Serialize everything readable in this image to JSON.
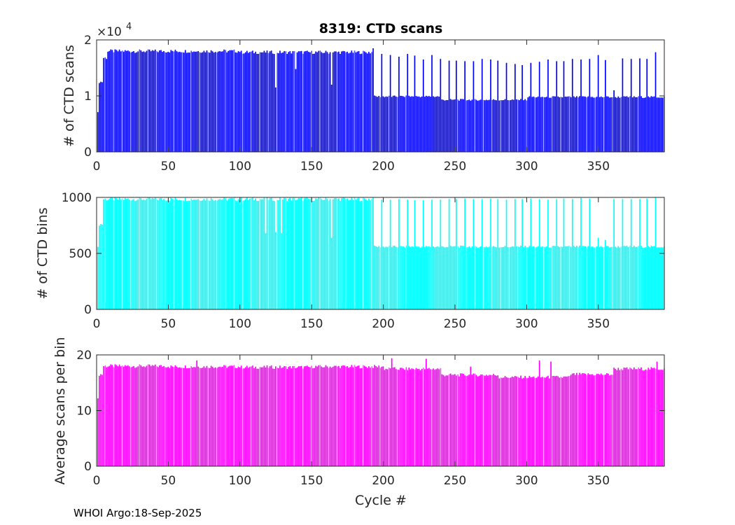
{
  "footer": "WHOI Argo:18-Sep-2025",
  "colors": {
    "scans": "#0000ff",
    "bins": "#00ffff",
    "avg": "#ff00ff",
    "axis": "#262626"
  },
  "chart_data": [
    {
      "type": "bar",
      "title": "8319: CTD scans",
      "xlabel": "",
      "ylabel": "# of CTD scans",
      "xlim": [
        0,
        396
      ],
      "ylim": [
        0,
        20000
      ],
      "xticks": [
        0,
        50,
        100,
        150,
        200,
        250,
        300,
        350
      ],
      "yticks": [
        0,
        10000,
        20000
      ],
      "ytick_labels": [
        "0",
        "1",
        "2"
      ],
      "exponent_label": "×10",
      "exponent_power": "4",
      "color_key": "scans",
      "segments": [
        {
          "x_from": 1,
          "x_to": 1,
          "value": 7000
        },
        {
          "x_from": 2,
          "x_to": 4,
          "value": 12500
        },
        {
          "x_from": 5,
          "x_to": 7,
          "value": 16800
        },
        {
          "x_from": 8,
          "x_to": 100,
          "value": 18000
        },
        {
          "x_from": 101,
          "x_to": 192,
          "value": 17800
        },
        {
          "x_from": 193,
          "x_to": 240,
          "value": 9900
        },
        {
          "x_from": 241,
          "x_to": 300,
          "value": 9300
        },
        {
          "x_from": 301,
          "x_to": 396,
          "value": 9800
        }
      ],
      "spikes": [
        {
          "x": 125,
          "value": 11500
        },
        {
          "x": 139,
          "value": 14800
        },
        {
          "x": 164,
          "value": 12000
        },
        {
          "x": 193,
          "value": 18500
        },
        {
          "x": 199,
          "value": 17500
        },
        {
          "x": 205,
          "value": 17300
        },
        {
          "x": 211,
          "value": 17000
        },
        {
          "x": 217,
          "value": 17500
        },
        {
          "x": 222,
          "value": 17200
        },
        {
          "x": 228,
          "value": 16500
        },
        {
          "x": 234,
          "value": 17300
        },
        {
          "x": 240,
          "value": 16600
        },
        {
          "x": 246,
          "value": 16300
        },
        {
          "x": 251,
          "value": 16300
        },
        {
          "x": 257,
          "value": 16200
        },
        {
          "x": 263,
          "value": 16200
        },
        {
          "x": 269,
          "value": 16600
        },
        {
          "x": 275,
          "value": 16500
        },
        {
          "x": 280,
          "value": 16300
        },
        {
          "x": 286,
          "value": 15900
        },
        {
          "x": 292,
          "value": 15700
        },
        {
          "x": 297,
          "value": 15500
        },
        {
          "x": 303,
          "value": 15900
        },
        {
          "x": 309,
          "value": 16100
        },
        {
          "x": 315,
          "value": 16500
        },
        {
          "x": 321,
          "value": 16200
        },
        {
          "x": 326,
          "value": 16200
        },
        {
          "x": 332,
          "value": 16600
        },
        {
          "x": 338,
          "value": 16500
        },
        {
          "x": 344,
          "value": 16600
        },
        {
          "x": 350,
          "value": 17300
        },
        {
          "x": 355,
          "value": 16400
        },
        {
          "x": 361,
          "value": 11000
        },
        {
          "x": 367,
          "value": 16700
        },
        {
          "x": 373,
          "value": 16600
        },
        {
          "x": 379,
          "value": 16700
        },
        {
          "x": 384,
          "value": 16600
        },
        {
          "x": 390,
          "value": 17800
        }
      ]
    },
    {
      "type": "bar",
      "title": "",
      "xlabel": "",
      "ylabel": "# of CTD bins",
      "xlim": [
        0,
        396
      ],
      "ylim": [
        0,
        1000
      ],
      "xticks": [
        0,
        50,
        100,
        150,
        200,
        250,
        300,
        350
      ],
      "yticks": [
        0,
        500,
        1000
      ],
      "ytick_labels": [
        "0",
        "500",
        "1000"
      ],
      "color_key": "bins",
      "segments": [
        {
          "x_from": 1,
          "x_to": 1,
          "value": 550
        },
        {
          "x_from": 2,
          "x_to": 4,
          "value": 760
        },
        {
          "x_from": 5,
          "x_to": 192,
          "value": 985
        },
        {
          "x_from": 193,
          "x_to": 396,
          "value": 560
        }
      ],
      "spikes": [
        {
          "x": 118,
          "value": 680
        },
        {
          "x": 125,
          "value": 690
        },
        {
          "x": 129,
          "value": 680
        },
        {
          "x": 164,
          "value": 640
        },
        {
          "x": 193,
          "value": 1000
        },
        {
          "x": 199,
          "value": 980
        },
        {
          "x": 205,
          "value": 980
        },
        {
          "x": 211,
          "value": 985
        },
        {
          "x": 217,
          "value": 980
        },
        {
          "x": 222,
          "value": 975
        },
        {
          "x": 228,
          "value": 975
        },
        {
          "x": 234,
          "value": 980
        },
        {
          "x": 240,
          "value": 980
        },
        {
          "x": 246,
          "value": 985
        },
        {
          "x": 251,
          "value": 985
        },
        {
          "x": 257,
          "value": 990
        },
        {
          "x": 263,
          "value": 985
        },
        {
          "x": 269,
          "value": 985
        },
        {
          "x": 275,
          "value": 990
        },
        {
          "x": 280,
          "value": 985
        },
        {
          "x": 286,
          "value": 980
        },
        {
          "x": 292,
          "value": 985
        },
        {
          "x": 297,
          "value": 985
        },
        {
          "x": 303,
          "value": 990
        },
        {
          "x": 309,
          "value": 985
        },
        {
          "x": 315,
          "value": 980
        },
        {
          "x": 321,
          "value": 985
        },
        {
          "x": 326,
          "value": 990
        },
        {
          "x": 332,
          "value": 985
        },
        {
          "x": 338,
          "value": 995
        },
        {
          "x": 344,
          "value": 990
        },
        {
          "x": 350,
          "value": 640
        },
        {
          "x": 355,
          "value": 620
        },
        {
          "x": 361,
          "value": 985
        },
        {
          "x": 367,
          "value": 985
        },
        {
          "x": 373,
          "value": 985
        },
        {
          "x": 379,
          "value": 985
        },
        {
          "x": 384,
          "value": 990
        },
        {
          "x": 390,
          "value": 1000
        }
      ]
    },
    {
      "type": "bar",
      "title": "",
      "xlabel": "Cycle #",
      "ylabel": "Average scans per bin",
      "xlim": [
        0,
        396
      ],
      "ylim": [
        0,
        20
      ],
      "xticks": [
        0,
        50,
        100,
        150,
        200,
        250,
        300,
        350
      ],
      "yticks": [
        0,
        10,
        20
      ],
      "ytick_labels": [
        "0",
        "10",
        "20"
      ],
      "color_key": "avg",
      "segments": [
        {
          "x_from": 1,
          "x_to": 1,
          "value": 12
        },
        {
          "x_from": 2,
          "x_to": 4,
          "value": 16.5
        },
        {
          "x_from": 5,
          "x_to": 50,
          "value": 18
        },
        {
          "x_from": 51,
          "x_to": 100,
          "value": 17.9
        },
        {
          "x_from": 101,
          "x_to": 150,
          "value": 17.8
        },
        {
          "x_from": 151,
          "x_to": 200,
          "value": 17.9
        },
        {
          "x_from": 201,
          "x_to": 240,
          "value": 17.5
        },
        {
          "x_from": 241,
          "x_to": 280,
          "value": 16.4
        },
        {
          "x_from": 281,
          "x_to": 330,
          "value": 16
        },
        {
          "x_from": 331,
          "x_to": 360,
          "value": 16.5
        },
        {
          "x_from": 361,
          "x_to": 396,
          "value": 17.5
        }
      ],
      "spikes": [
        {
          "x": 70,
          "value": 19
        },
        {
          "x": 206,
          "value": 19.4
        },
        {
          "x": 230,
          "value": 19.3
        },
        {
          "x": 261,
          "value": 17.9
        },
        {
          "x": 309,
          "value": 19
        },
        {
          "x": 317,
          "value": 18.8
        },
        {
          "x": 391,
          "value": 18.8
        }
      ]
    }
  ]
}
